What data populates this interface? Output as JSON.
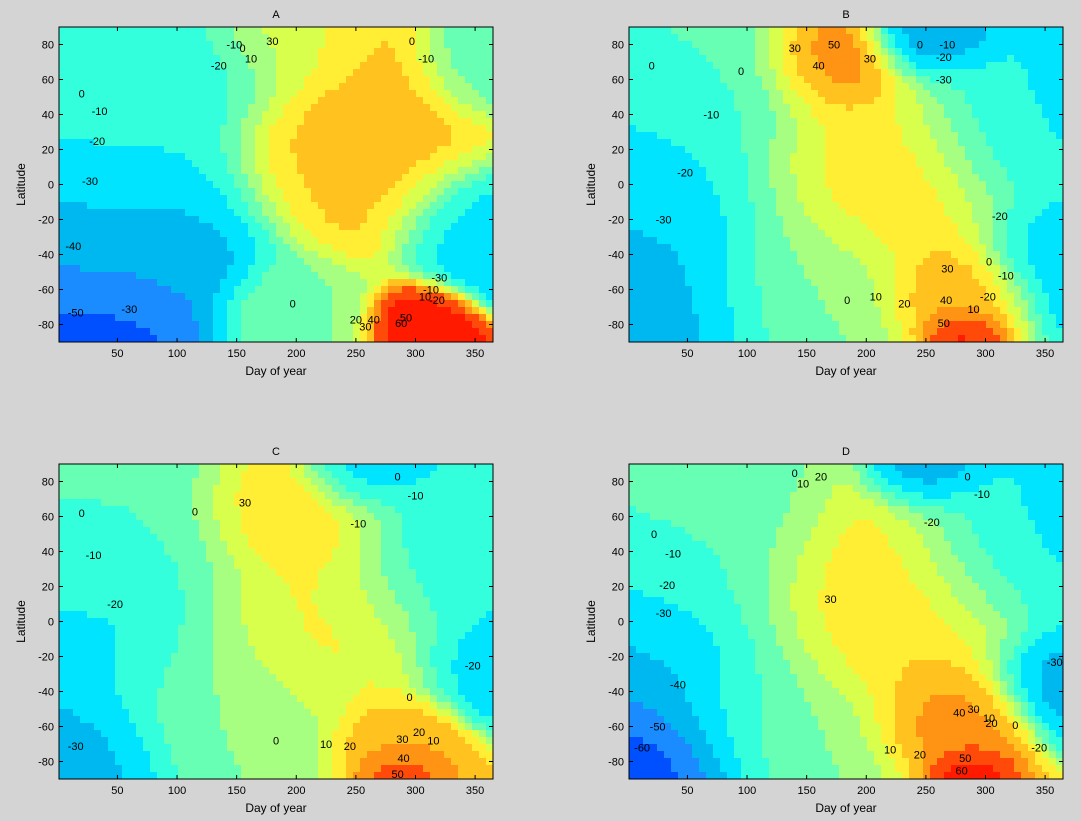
{
  "chart_data": [
    {
      "type": "contour",
      "title": "A",
      "xlabel": "Day of year",
      "ylabel": "Latitude",
      "xlim": [
        1,
        365
      ],
      "ylim": [
        -90,
        90
      ],
      "xticks": [
        50,
        100,
        150,
        200,
        250,
        300,
        350
      ],
      "yticks": [
        80,
        60,
        40,
        20,
        0,
        -20,
        -40,
        -60,
        -80
      ],
      "grid": false,
      "centers": [
        {
          "x": 20,
          "y": -85,
          "value": -58,
          "spread": 18
        },
        {
          "x": 30,
          "y": -30,
          "value": -35,
          "spread": 28
        },
        {
          "x": 45,
          "y": 30,
          "value": -15,
          "spread": 22
        },
        {
          "x": 130,
          "y": 70,
          "value": -22,
          "spread": 14
        },
        {
          "x": 355,
          "y": -20,
          "value": -30,
          "spread": 14
        },
        {
          "x": 260,
          "y": 20,
          "value": 35,
          "spread": 22
        },
        {
          "x": 300,
          "y": -80,
          "value": 65,
          "spread": 8
        },
        {
          "x": 180,
          "y": 80,
          "value": 20,
          "spread": 14
        },
        {
          "x": 200,
          "y": -75,
          "value": 0,
          "spread": 12
        },
        {
          "x": 370,
          "y": 65,
          "value": -8,
          "spread": 12
        }
      ],
      "contour_labels": [
        {
          "x": 20,
          "y": 52,
          "text": "0"
        },
        {
          "x": 35,
          "y": 42,
          "text": "-10"
        },
        {
          "x": 33,
          "y": 25,
          "text": "-20"
        },
        {
          "x": 27,
          "y": 2,
          "text": "-30"
        },
        {
          "x": 13,
          "y": -35,
          "text": "-40"
        },
        {
          "x": 15,
          "y": -73,
          "text": "-50"
        },
        {
          "x": 60,
          "y": -71,
          "text": "-30"
        },
        {
          "x": 135,
          "y": 68,
          "text": "-20"
        },
        {
          "x": 148,
          "y": 80,
          "text": "-10"
        },
        {
          "x": 155,
          "y": 78,
          "text": "0"
        },
        {
          "x": 162,
          "y": 72,
          "text": "10"
        },
        {
          "x": 180,
          "y": 82,
          "text": "30"
        },
        {
          "x": 297,
          "y": 82,
          "text": "0"
        },
        {
          "x": 309,
          "y": 72,
          "text": "-10"
        },
        {
          "x": 197,
          "y": -68,
          "text": "0"
        },
        {
          "x": 250,
          "y": -77,
          "text": "20"
        },
        {
          "x": 258,
          "y": -81,
          "text": "30"
        },
        {
          "x": 265,
          "y": -77,
          "text": "40"
        },
        {
          "x": 292,
          "y": -76,
          "text": "50"
        },
        {
          "x": 288,
          "y": -79,
          "text": "60"
        },
        {
          "x": 308,
          "y": -64,
          "text": "10"
        },
        {
          "x": 313,
          "y": -60,
          "text": "-10"
        },
        {
          "x": 318,
          "y": -66,
          "text": "-20"
        },
        {
          "x": 320,
          "y": -53,
          "text": "-30"
        }
      ]
    },
    {
      "type": "contour",
      "title": "B",
      "xlabel": "Day of year",
      "ylabel": "Latitude",
      "xlim": [
        1,
        365
      ],
      "ylim": [
        -90,
        90
      ],
      "xticks": [
        50,
        100,
        150,
        200,
        250,
        300,
        350
      ],
      "yticks": [
        80,
        60,
        40,
        20,
        0,
        -20,
        -40,
        -60,
        -80
      ],
      "grid": false,
      "centers": [
        {
          "x": 30,
          "y": -30,
          "value": -32,
          "spread": 28
        },
        {
          "x": 0,
          "y": -65,
          "value": -35,
          "spread": 18
        },
        {
          "x": 20,
          "y": 20,
          "value": -22,
          "spread": 24
        },
        {
          "x": 60,
          "y": 60,
          "value": -8,
          "spread": 20
        },
        {
          "x": 250,
          "y": 85,
          "value": -40,
          "spread": 10
        },
        {
          "x": 340,
          "y": 30,
          "value": -22,
          "spread": 22
        },
        {
          "x": 360,
          "y": -40,
          "value": -28,
          "spread": 14
        },
        {
          "x": 170,
          "y": 70,
          "value": 50,
          "spread": 12
        },
        {
          "x": 200,
          "y": 0,
          "value": 30,
          "spread": 26
        },
        {
          "x": 275,
          "y": -60,
          "value": 40,
          "spread": 12
        },
        {
          "x": 280,
          "y": -85,
          "value": 65,
          "spread": 6
        },
        {
          "x": 150,
          "y": -55,
          "value": 0,
          "spread": 18
        }
      ],
      "contour_labels": [
        {
          "x": 20,
          "y": 68,
          "text": "0"
        },
        {
          "x": 95,
          "y": 65,
          "text": "0"
        },
        {
          "x": 70,
          "y": 40,
          "text": "-10"
        },
        {
          "x": 48,
          "y": 7,
          "text": "-20"
        },
        {
          "x": 30,
          "y": -20,
          "text": "-30"
        },
        {
          "x": 140,
          "y": 78,
          "text": "30"
        },
        {
          "x": 160,
          "y": 68,
          "text": "40"
        },
        {
          "x": 173,
          "y": 80,
          "text": "50"
        },
        {
          "x": 203,
          "y": 72,
          "text": "30"
        },
        {
          "x": 245,
          "y": 80,
          "text": "0"
        },
        {
          "x": 268,
          "y": 80,
          "text": "-10"
        },
        {
          "x": 265,
          "y": 73,
          "text": "-20"
        },
        {
          "x": 265,
          "y": 60,
          "text": "-30"
        },
        {
          "x": 312,
          "y": -18,
          "text": "-20"
        },
        {
          "x": 303,
          "y": -44,
          "text": "0"
        },
        {
          "x": 317,
          "y": -52,
          "text": "-10"
        },
        {
          "x": 302,
          "y": -64,
          "text": "-20"
        },
        {
          "x": 290,
          "y": -71,
          "text": "10"
        },
        {
          "x": 268,
          "y": -48,
          "text": "30"
        },
        {
          "x": 267,
          "y": -66,
          "text": "40"
        },
        {
          "x": 232,
          "y": -68,
          "text": "20"
        },
        {
          "x": 208,
          "y": -64,
          "text": "10"
        },
        {
          "x": 184,
          "y": -66,
          "text": "0"
        },
        {
          "x": 265,
          "y": -79,
          "text": "50"
        }
      ]
    },
    {
      "type": "contour",
      "title": "C",
      "xlabel": "Day of year",
      "ylabel": "Latitude",
      "xlim": [
        1,
        365
      ],
      "ylim": [
        -90,
        90
      ],
      "xticks": [
        50,
        100,
        150,
        200,
        250,
        300,
        350
      ],
      "yticks": [
        80,
        60,
        40,
        20,
        0,
        -20,
        -40,
        -60,
        -80
      ],
      "grid": false,
      "centers": [
        {
          "x": 15,
          "y": -75,
          "value": -35,
          "spread": 16
        },
        {
          "x": 40,
          "y": 0,
          "value": -25,
          "spread": 26
        },
        {
          "x": 50,
          "y": 50,
          "value": -8,
          "spread": 26
        },
        {
          "x": 250,
          "y": 85,
          "value": -30,
          "spread": 10
        },
        {
          "x": 335,
          "y": 30,
          "value": -20,
          "spread": 22
        },
        {
          "x": 365,
          "y": -20,
          "value": -28,
          "spread": 12
        },
        {
          "x": 190,
          "y": 60,
          "value": 35,
          "spread": 16
        },
        {
          "x": 210,
          "y": 0,
          "value": 25,
          "spread": 24
        },
        {
          "x": 280,
          "y": -70,
          "value": 40,
          "spread": 10
        },
        {
          "x": 285,
          "y": -88,
          "value": 60,
          "spread": 6
        },
        {
          "x": 140,
          "y": -50,
          "value": 0,
          "spread": 20
        }
      ],
      "contour_labels": [
        {
          "x": 20,
          "y": 62,
          "text": "0"
        },
        {
          "x": 30,
          "y": 38,
          "text": "-10"
        },
        {
          "x": 48,
          "y": 10,
          "text": "-20"
        },
        {
          "x": 15,
          "y": -71,
          "text": "-30"
        },
        {
          "x": 115,
          "y": 63,
          "text": "0"
        },
        {
          "x": 157,
          "y": 68,
          "text": "30"
        },
        {
          "x": 252,
          "y": 56,
          "text": "-10"
        },
        {
          "x": 285,
          "y": 83,
          "text": "0"
        },
        {
          "x": 300,
          "y": 72,
          "text": "-10"
        },
        {
          "x": 348,
          "y": -25,
          "text": "-20"
        },
        {
          "x": 295,
          "y": -43,
          "text": "0"
        },
        {
          "x": 289,
          "y": -67,
          "text": "30"
        },
        {
          "x": 303,
          "y": -63,
          "text": "20"
        },
        {
          "x": 315,
          "y": -68,
          "text": "10"
        },
        {
          "x": 183,
          "y": -68,
          "text": "0"
        },
        {
          "x": 225,
          "y": -70,
          "text": "10"
        },
        {
          "x": 245,
          "y": -71,
          "text": "20"
        },
        {
          "x": 290,
          "y": -78,
          "text": "40"
        },
        {
          "x": 285,
          "y": -87,
          "text": "50"
        }
      ]
    },
    {
      "type": "contour",
      "title": "D",
      "xlabel": "Day of year",
      "ylabel": "Latitude",
      "xlim": [
        1,
        365
      ],
      "ylim": [
        -90,
        90
      ],
      "xticks": [
        50,
        100,
        150,
        200,
        250,
        300,
        350
      ],
      "yticks": [
        80,
        60,
        40,
        20,
        0,
        -20,
        -40,
        -60,
        -80
      ],
      "grid": false,
      "centers": [
        {
          "x": 15,
          "y": -80,
          "value": -65,
          "spread": 18
        },
        {
          "x": 30,
          "y": -30,
          "value": -35,
          "spread": 26
        },
        {
          "x": 50,
          "y": 30,
          "value": -15,
          "spread": 24
        },
        {
          "x": 70,
          "y": 70,
          "value": -5,
          "spread": 20
        },
        {
          "x": 250,
          "y": 88,
          "value": -40,
          "spread": 10
        },
        {
          "x": 330,
          "y": 40,
          "value": -25,
          "spread": 22
        },
        {
          "x": 365,
          "y": -30,
          "value": -38,
          "spread": 12
        },
        {
          "x": 210,
          "y": 10,
          "value": 32,
          "spread": 28
        },
        {
          "x": 270,
          "y": -55,
          "value": 45,
          "spread": 12
        },
        {
          "x": 285,
          "y": -85,
          "value": 65,
          "spread": 6
        },
        {
          "x": 120,
          "y": -60,
          "value": 0,
          "spread": 20
        }
      ],
      "contour_labels": [
        {
          "x": 22,
          "y": 50,
          "text": "0"
        },
        {
          "x": 38,
          "y": 39,
          "text": "-10"
        },
        {
          "x": 33,
          "y": 21,
          "text": "-20"
        },
        {
          "x": 30,
          "y": 5,
          "text": "-30"
        },
        {
          "x": 42,
          "y": -36,
          "text": "-40"
        },
        {
          "x": 25,
          "y": -60,
          "text": "-50"
        },
        {
          "x": 12,
          "y": -72,
          "text": "-60"
        },
        {
          "x": 140,
          "y": 85,
          "text": "0"
        },
        {
          "x": 147,
          "y": 79,
          "text": "10"
        },
        {
          "x": 162,
          "y": 83,
          "text": "20"
        },
        {
          "x": 170,
          "y": 13,
          "text": "30"
        },
        {
          "x": 285,
          "y": 83,
          "text": "0"
        },
        {
          "x": 297,
          "y": 73,
          "text": "-10"
        },
        {
          "x": 255,
          "y": 57,
          "text": "-20"
        },
        {
          "x": 358,
          "y": -23,
          "text": "-30"
        },
        {
          "x": 345,
          "y": -72,
          "text": "-20"
        },
        {
          "x": 325,
          "y": -59,
          "text": "0"
        },
        {
          "x": 303,
          "y": -55,
          "text": "10"
        },
        {
          "x": 305,
          "y": -58,
          "text": "20"
        },
        {
          "x": 290,
          "y": -50,
          "text": "30"
        },
        {
          "x": 278,
          "y": -52,
          "text": "40"
        },
        {
          "x": 220,
          "y": -73,
          "text": "10"
        },
        {
          "x": 245,
          "y": -76,
          "text": "20"
        },
        {
          "x": 283,
          "y": -78,
          "text": "50"
        },
        {
          "x": 280,
          "y": -85,
          "text": "60"
        }
      ]
    }
  ]
}
